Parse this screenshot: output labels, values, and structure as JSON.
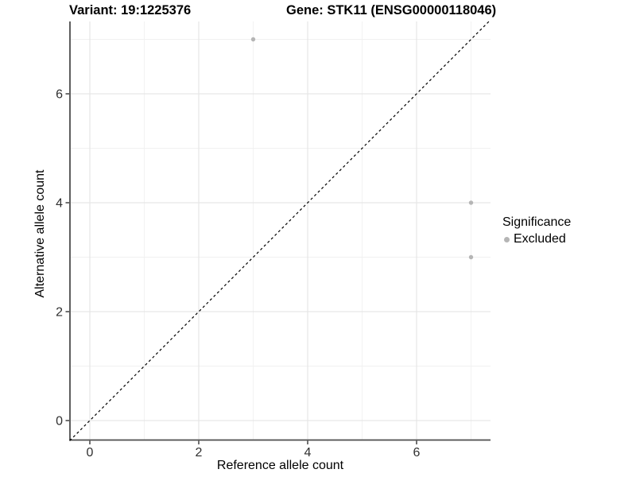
{
  "title": {
    "left": "Variant: 19:1225376",
    "right": "Gene: STK11 (ENSG00000118046)"
  },
  "chart_data": {
    "type": "scatter",
    "xlabel": "Reference allele count",
    "ylabel": "Alternative allele count",
    "xlim": [
      -0.37,
      7.37
    ],
    "ylim": [
      -0.37,
      7.37
    ],
    "x_major_ticks": [
      0,
      2,
      4,
      6
    ],
    "y_major_ticks": [
      0,
      2,
      4,
      6
    ],
    "x_minor_ticks": [
      1,
      3,
      5,
      7
    ],
    "y_minor_ticks": [
      1,
      3,
      5,
      7
    ],
    "grid": "on",
    "identity_line": {
      "style": "dashed",
      "color": "#000000",
      "from": [
        -0.37,
        -0.37
      ],
      "to": [
        7.33,
        7.33
      ]
    },
    "series": [
      {
        "name": "Excluded",
        "color": "#b5b5b5",
        "points": [
          [
            3,
            7
          ],
          [
            7,
            4
          ],
          [
            7,
            3
          ]
        ]
      }
    ],
    "legend": {
      "title": "Significance",
      "position": "right",
      "items": [
        {
          "label": "Excluded",
          "color": "#b5b5b5"
        }
      ]
    },
    "colors": {
      "background": "#ffffff",
      "grid_major": "#e6e6e6",
      "grid_minor": "#f1f1f1",
      "axis_line": "#4d4d4d",
      "tick_mark": "#333333",
      "tick_label": "#303030",
      "point": "#b5b5b5"
    }
  }
}
